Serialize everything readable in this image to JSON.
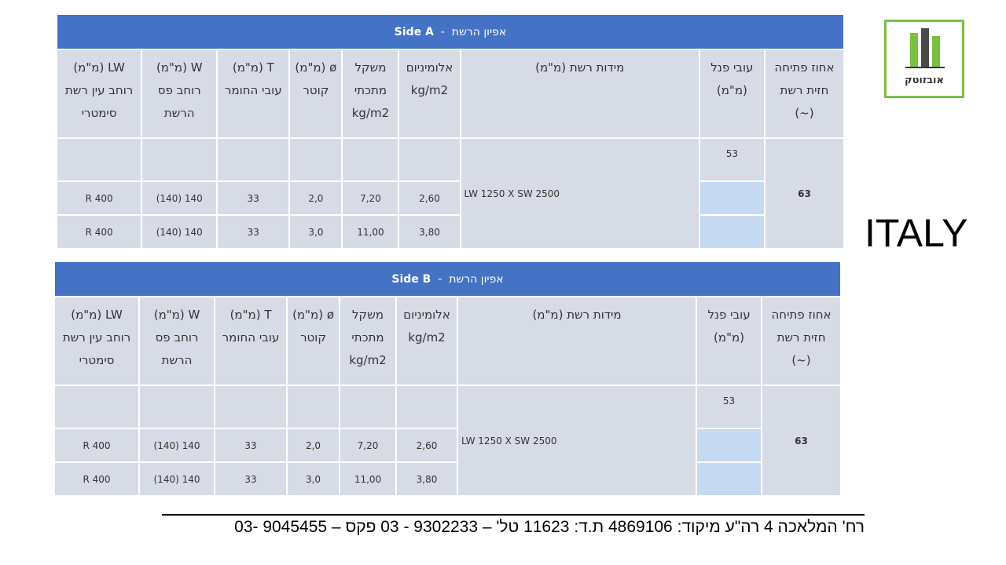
{
  "logo": {
    "text": "אובזוטק"
  },
  "country": "ITALY",
  "headers": [
    "אחוז פתיחה\nחזית רשת\n(~)",
    "עובי פנל\n(מ\"מ)",
    "מידות רשת (מ\"מ)",
    "אלומיניום\nkg/m2",
    "משקל\nמתכתי\nkg/m2",
    "ø (מ\"מ)\nקוטר",
    "T (מ\"מ)\nעובי החומר",
    "W (מ\"מ)\nרוחב פס\nהרשת",
    "LW (מ\"מ)\nרוחב עין רשת\nסימטרי"
  ],
  "tables": [
    {
      "title": {
        "side": "Side A",
        "separator": "-",
        "name": "אפיון הרשת"
      },
      "opening": "63",
      "panel": "53",
      "dimensions": "LW 1250 X SW 2500",
      "rows": [
        [
          "2,60",
          "7,20",
          "2,0",
          "33",
          "140 (140)",
          "R 400"
        ],
        [
          "3,80",
          "11,00",
          "3,0",
          "33",
          "140 (140)",
          "R 400"
        ]
      ]
    },
    {
      "title": {
        "side": "Side B",
        "separator": "-",
        "name": "אפיון הרשת"
      },
      "opening": "63",
      "panel": "53",
      "dimensions": "LW 1250 X SW 2500",
      "rows": [
        [
          "2,60",
          "7,20",
          "2,0",
          "33",
          "140 (140)",
          "R 400"
        ],
        [
          "3,80",
          "11,00",
          "3,0",
          "33",
          "140 (140)",
          "R 400"
        ]
      ]
    }
  ],
  "footer": "רח' המלאכה 4 רה\"ע מיקוד: 4869106 ת.ד: 11623 טל' – 9302233 - 03    פקס – 9045455 -03"
}
